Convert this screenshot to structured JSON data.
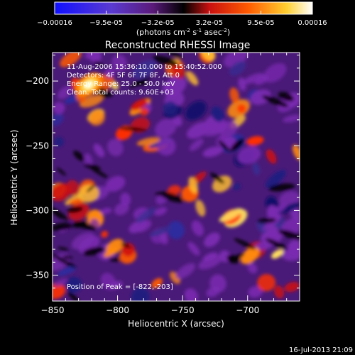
{
  "colorbar": {
    "tick_labels": [
      "-0.00016",
      "-9.5e-05",
      "-3.2e-05",
      "3.2e-05",
      "9.5e-05",
      "0.00016"
    ],
    "range": [
      -0.00016,
      0.00016
    ],
    "units_label": "(photons cm",
    "units_exp1": "-2",
    "units_mid": " s",
    "units_exp2": "-1",
    "units_mid2": " asec",
    "units_exp3": "-2",
    "units_close": ")",
    "colors": [
      "#0000ff",
      "#ff2000",
      "#ff8000",
      "#ffff60",
      "#ffffff"
    ]
  },
  "chart_data": {
    "type": "heatmap",
    "title": "Reconstructed RHESSI Image",
    "xlabel": "Heliocentric X (arcsec)",
    "ylabel": "Heliocentric Y (arcsec)",
    "xlim": [
      -850,
      -660
    ],
    "ylim": [
      -370,
      -178
    ],
    "x_ticks": [
      -850,
      -800,
      -750,
      -700
    ],
    "y_ticks": [
      -200,
      -250,
      -300,
      -350
    ],
    "annotations": [
      "11-Aug-2006 15:36:10.000 to 15:40:52.000",
      "Detectors: 4F 5F 6F 7F 8F, Att 0",
      "Energy Range: 25.0 - 50.0 keV",
      "Clean. Total counts: 9.60E+03"
    ],
    "peak_label": "Position of Peak = [-822,-203]",
    "peak": [
      -822,
      -203
    ]
  },
  "footer": {
    "timestamp": "16-Jul-2013 21:09"
  }
}
